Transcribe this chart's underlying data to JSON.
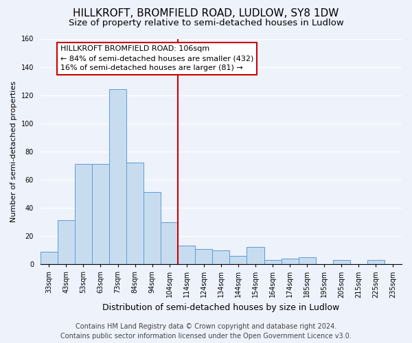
{
  "title": "HILLKROFT, BROMFIELD ROAD, LUDLOW, SY8 1DW",
  "subtitle": "Size of property relative to semi-detached houses in Ludlow",
  "xlabel": "Distribution of semi-detached houses by size in Ludlow",
  "ylabel": "Number of semi-detached properties",
  "bar_labels": [
    "33sqm",
    "43sqm",
    "53sqm",
    "63sqm",
    "73sqm",
    "84sqm",
    "94sqm",
    "104sqm",
    "114sqm",
    "124sqm",
    "134sqm",
    "144sqm",
    "154sqm",
    "164sqm",
    "174sqm",
    "185sqm",
    "195sqm",
    "205sqm",
    "215sqm",
    "225sqm",
    "235sqm"
  ],
  "bar_values": [
    9,
    31,
    71,
    71,
    124,
    72,
    51,
    30,
    13,
    11,
    10,
    6,
    12,
    3,
    4,
    5,
    0,
    3,
    0,
    3,
    0
  ],
  "bar_color": "#c8dcf0",
  "bar_edge_color": "#5b9bd5",
  "vline_color": "#cc0000",
  "vline_pos": 7.5,
  "ylim": [
    0,
    160
  ],
  "annotation_title": "HILLKROFT BROMFIELD ROAD: 106sqm",
  "annotation_line1": "← 84% of semi-detached houses are smaller (432)",
  "annotation_line2": "16% of semi-detached houses are larger (81) →",
  "annotation_box_color": "#ffffff",
  "annotation_box_edge": "#cc0000",
  "footer1": "Contains HM Land Registry data © Crown copyright and database right 2024.",
  "footer2": "Contains public sector information licensed under the Open Government Licence v3.0.",
  "background_color": "#eef2fb",
  "plot_bg_color": "#eef2fb",
  "title_fontsize": 11,
  "subtitle_fontsize": 9.5,
  "xlabel_fontsize": 9,
  "ylabel_fontsize": 8,
  "tick_fontsize": 7,
  "footer_fontsize": 7,
  "annot_fontsize": 8
}
